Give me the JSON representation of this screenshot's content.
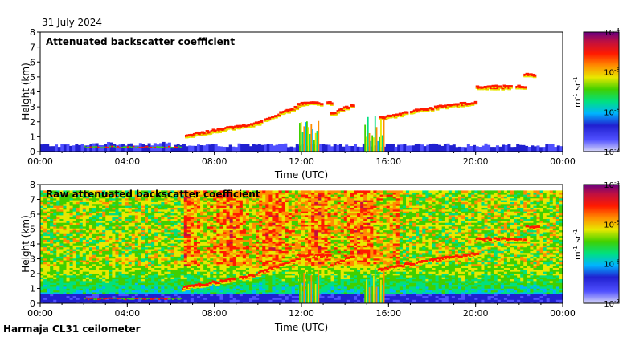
{
  "date_label": "31 July 2024",
  "footer_label": "Harmaja CL31 ceilometer",
  "colors": {
    "axis": "#000000",
    "colormap": [
      "#d8d8f8",
      "#5050ff",
      "#2020d0",
      "#00b4ff",
      "#00e080",
      "#40d000",
      "#e8e800",
      "#ff8c00",
      "#ff1a00",
      "#c01040",
      "#6a0080"
    ]
  },
  "chart_data": [
    {
      "type": "heatmap",
      "title": "Attenuated backscatter coefficient",
      "xlabel": "Time (UTC)",
      "ylabel": "Height (km)",
      "x_ticks": [
        "00:00",
        "04:00",
        "08:00",
        "12:00",
        "16:00",
        "20:00",
        "00:00"
      ],
      "y_ticks": [
        "0",
        "1",
        "2",
        "3",
        "4",
        "5",
        "6",
        "7",
        "8"
      ],
      "xlim_hours": [
        0,
        24
      ],
      "ylim_km": [
        0,
        8
      ],
      "colorbar": {
        "ticks": [
          {
            "base": "10",
            "exp": "-7"
          },
          {
            "base": "10",
            "exp": "-6"
          },
          {
            "base": "10",
            "exp": "-5"
          },
          {
            "base": "10",
            "exp": "-4"
          }
        ],
        "unit_m": "m",
        "unit_m_exp": "-1",
        "unit_sr": "sr",
        "unit_sr_exp": "-1",
        "scale": "log",
        "range": [
          1e-07,
          0.0001
        ]
      },
      "features": {
        "boundary_layer_height_km": 0.3,
        "cloud_layers": [
          {
            "t_start": 6.5,
            "t_end": 10.0,
            "h_start": 1.0,
            "h_end": 1.9
          },
          {
            "t_start": 10.0,
            "t_end": 11.8,
            "h_start": 2.0,
            "h_end": 3.0
          },
          {
            "t_start": 11.8,
            "t_end": 13.3,
            "h_start": 3.2,
            "h_end": 3.2
          },
          {
            "t_start": 13.3,
            "t_end": 14.3,
            "h_start": 2.5,
            "h_end": 3.1
          },
          {
            "t_start": 15.5,
            "t_end": 17.5,
            "h_start": 2.2,
            "h_end": 2.8
          },
          {
            "t_start": 17.5,
            "t_end": 20.0,
            "h_start": 2.8,
            "h_end": 3.3
          },
          {
            "t_start": 20.0,
            "t_end": 22.2,
            "h_start": 4.3,
            "h_end": 4.3
          },
          {
            "t_start": 22.2,
            "t_end": 22.8,
            "h_start": 5.1,
            "h_end": 5.1
          }
        ],
        "precipitation_hours": [
          12.0,
          15.0
        ]
      }
    },
    {
      "type": "heatmap",
      "title": "Raw attenuated backscatter coefficient",
      "xlabel": "Time (UTC)",
      "ylabel": "Height (km)",
      "x_ticks": [
        "00:00",
        "04:00",
        "08:00",
        "12:00",
        "16:00",
        "20:00",
        "00:00"
      ],
      "y_ticks": [
        "0",
        "1",
        "2",
        "3",
        "4",
        "5",
        "6",
        "7",
        "8"
      ],
      "xlim_hours": [
        0,
        24
      ],
      "ylim_km": [
        0,
        8
      ],
      "colorbar": {
        "ticks": [
          {
            "base": "10",
            "exp": "-7"
          },
          {
            "base": "10",
            "exp": "-6"
          },
          {
            "base": "10",
            "exp": "-5"
          },
          {
            "base": "10",
            "exp": "-4"
          }
        ],
        "unit_m": "m",
        "unit_m_exp": "-1",
        "unit_sr": "sr",
        "unit_sr_exp": "-1",
        "scale": "log",
        "range": [
          1e-07,
          0.0001
        ]
      }
    }
  ]
}
